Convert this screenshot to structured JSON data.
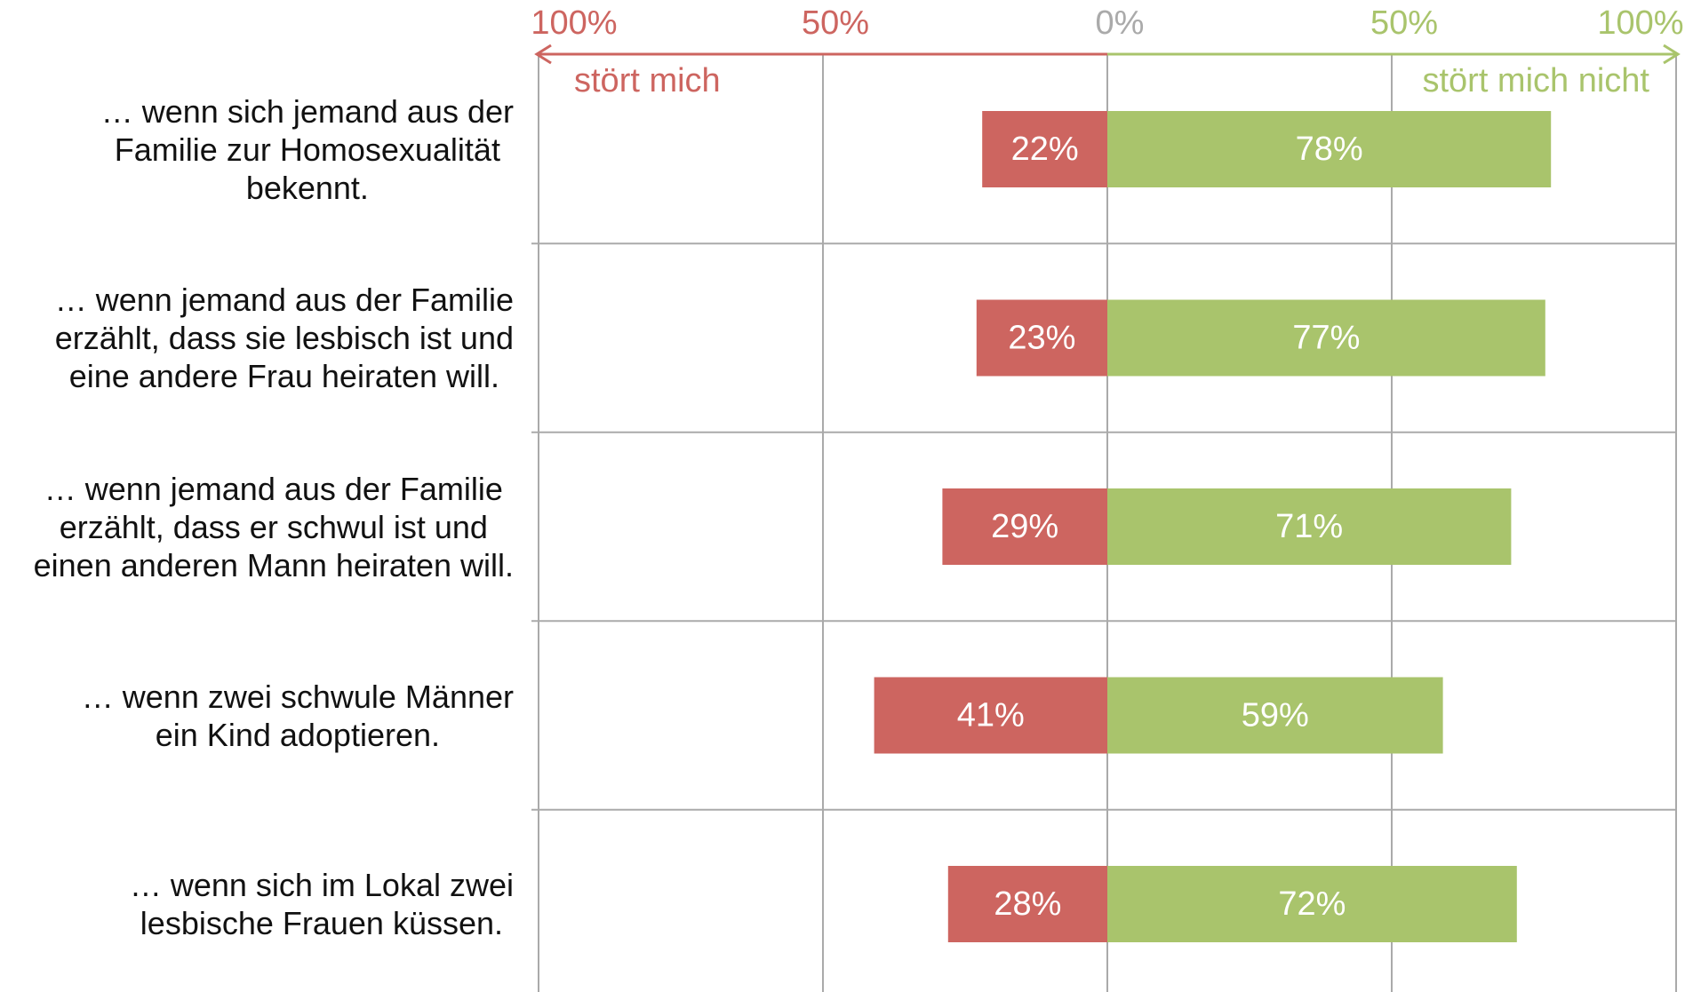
{
  "chart_data": {
    "type": "diverging_bar",
    "categories": [
      "… wenn sich jemand aus der\nFamilie zur Homosexualität\nbekennt.",
      "… wenn jemand aus der Familie\nerzählt, dass sie lesbisch ist und\neine andere Frau heiraten will.",
      "… wenn jemand aus der Familie\nerzählt, dass er schwul ist und\neinen anderen Mann heiraten will.",
      "… wenn zwei schwule Männer\nein Kind adoptieren.",
      "… wenn sich im Lokal zwei\nlesbische Frauen küssen."
    ],
    "series": [
      {
        "name": "stört mich",
        "color": "#cd6560",
        "direction": "left",
        "values": [
          22,
          23,
          29,
          41,
          28
        ],
        "value_labels": [
          "22%",
          "23%",
          "29%",
          "41%",
          "28%"
        ]
      },
      {
        "name": "stört mich nicht",
        "color": "#a9c46c",
        "direction": "right",
        "values": [
          78,
          77,
          71,
          59,
          72
        ],
        "value_labels": [
          "78%",
          "77%",
          "71%",
          "59%",
          "72%"
        ]
      }
    ],
    "xlim": [
      -100,
      100
    ],
    "xticks": [
      {
        "value": -100,
        "label": "100%"
      },
      {
        "value": -50,
        "label": "50%"
      },
      {
        "value": 0,
        "label": "0%"
      },
      {
        "value": 50,
        "label": "50%"
      },
      {
        "value": 100,
        "label": "100%"
      }
    ],
    "tick_colors": [
      "#cd6560",
      "#cd6560",
      "#aaaaaa",
      "#a9c46c",
      "#a9c46c"
    ],
    "grid": true
  }
}
